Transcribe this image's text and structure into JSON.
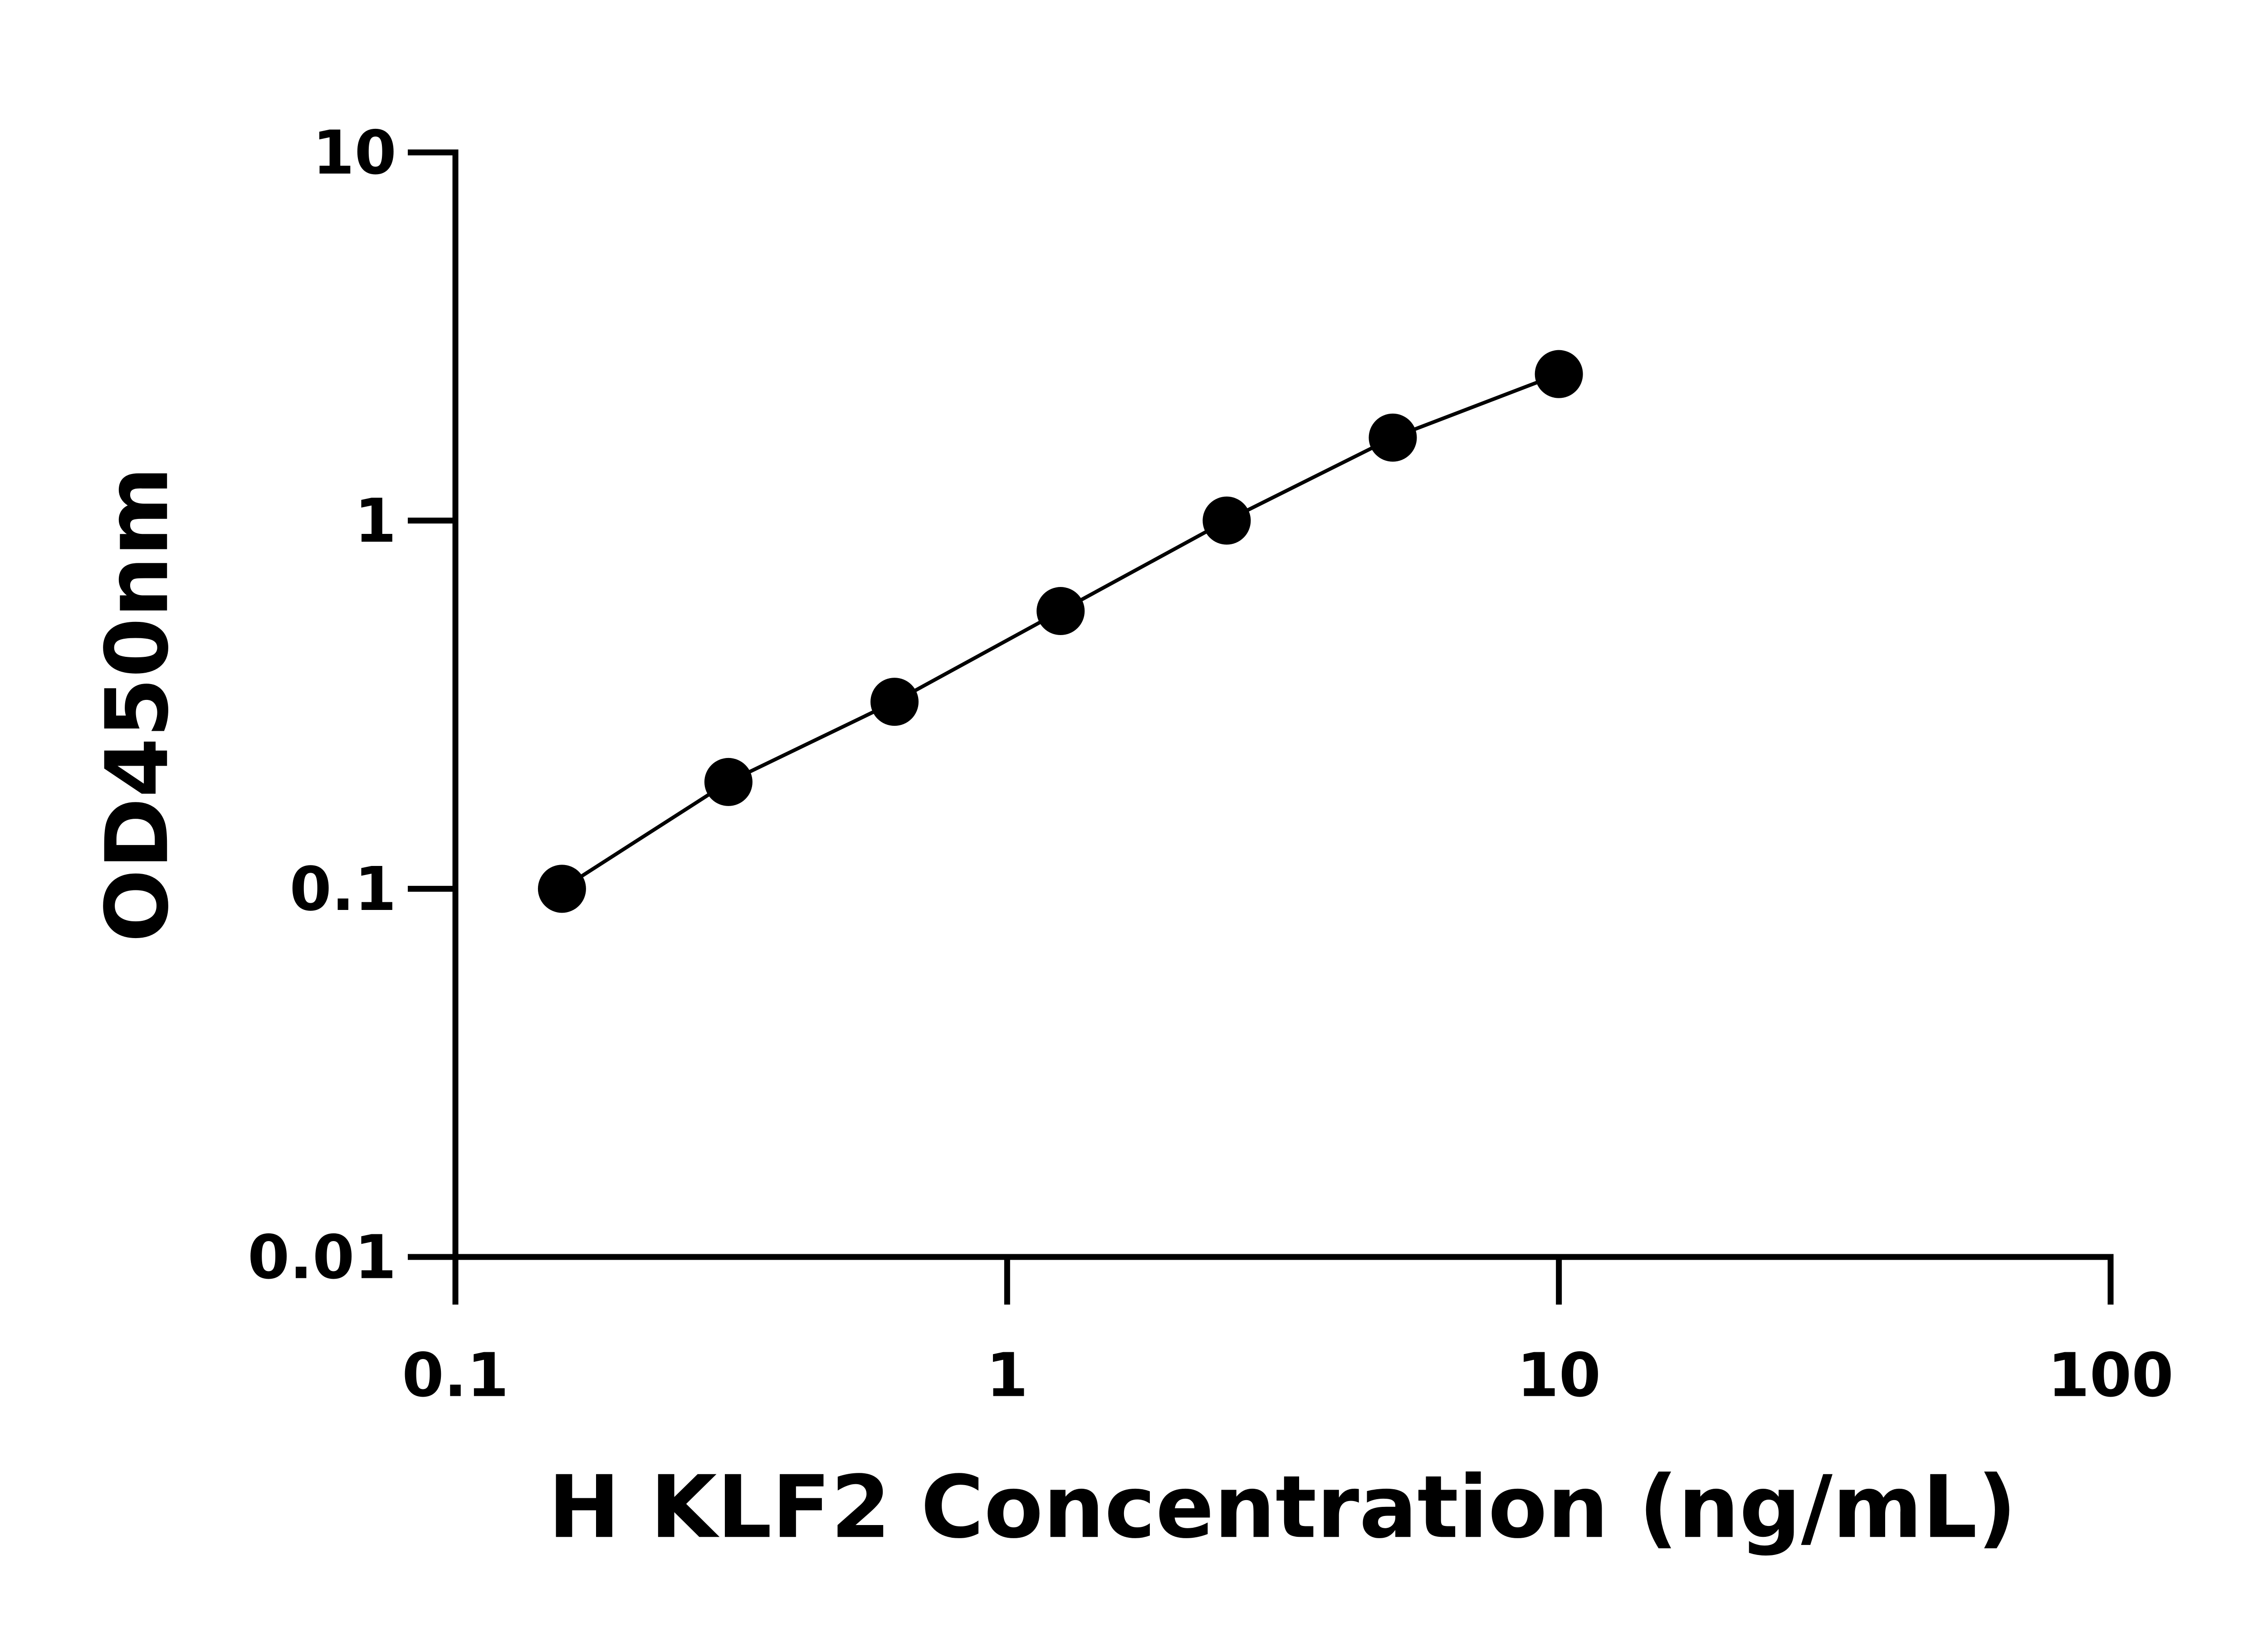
{
  "chart_data": {
    "type": "scatter",
    "x_label": "H KLF2 Concentration (ng/mL)",
    "y_label": "OD450nm",
    "x": [
      0.156,
      0.3125,
      0.625,
      1.25,
      2.5,
      5,
      10
    ],
    "values": [
      0.1,
      0.195,
      0.322,
      0.568,
      1.0,
      1.68,
      2.5
    ],
    "color": "#000000",
    "xlim": [
      0.1,
      100
    ],
    "xticks": [
      0.1,
      1,
      10,
      100
    ],
    "ylim": [
      0.01,
      10
    ],
    "yticks": [
      0.01,
      0.1,
      1,
      10
    ],
    "xscale": "log",
    "yscale": "log",
    "grid": false
  }
}
